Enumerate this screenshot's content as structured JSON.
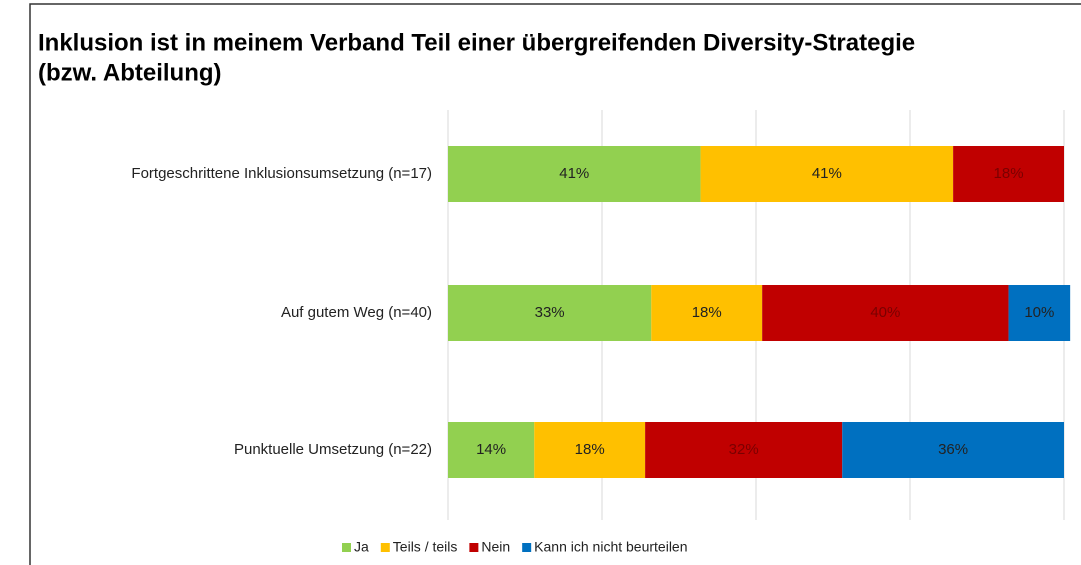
{
  "chart_data": {
    "type": "stacked_bar_horizontal",
    "title_lines": [
      "Inklusion ist in meinem Verband Teil einer übergreifenden Diversity-Strategie",
      "(bzw. Abteilung)"
    ],
    "categories": [
      "Fortgeschrittene Inklusionsumsetzung (n=17)",
      "Auf gutem Weg (n=40)",
      "Punktuelle Umsetzung (n=22)"
    ],
    "series": [
      {
        "name": "Ja",
        "color": "#92d050",
        "values": [
          41,
          33,
          14
        ],
        "value_labels": [
          "41%",
          "33%",
          "14%"
        ]
      },
      {
        "name": "Teils / teils",
        "color": "#ffc000",
        "values": [
          41,
          18,
          18
        ],
        "value_labels": [
          "41%",
          "18%",
          "18%"
        ]
      },
      {
        "name": "Nein",
        "color": "#c00000",
        "values": [
          18,
          40,
          32
        ],
        "value_labels": [
          "18%",
          "40%",
          "32%"
        ]
      },
      {
        "name": "Kann ich nicht beurteilen",
        "color": "#0070c0",
        "values": [
          null,
          10,
          36
        ],
        "value_labels": [
          null,
          "10%",
          "36%"
        ]
      }
    ],
    "xlim": [
      0,
      100
    ],
    "xticks": [
      0,
      25,
      50,
      75,
      100
    ],
    "grid": true,
    "legend": "bottom"
  }
}
